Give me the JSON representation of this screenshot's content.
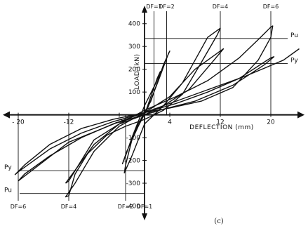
{
  "chart_data": {
    "type": "line",
    "panel_label": "(c)",
    "xlabel": "DEFLECTION (mm)",
    "ylabel": "LOAD (kN)",
    "xlim": [
      -22,
      25
    ],
    "ylim": [
      -420,
      430
    ],
    "x_ticks": [
      {
        "value": -20,
        "label": "- 20"
      },
      {
        "value": -12,
        "label": "-12"
      },
      {
        "value": -4,
        "label": "- 4"
      },
      {
        "value": 4,
        "label": "4"
      },
      {
        "value": 12,
        "label": "12"
      },
      {
        "value": 20,
        "label": "20"
      }
    ],
    "y_ticks": [
      {
        "value": 400,
        "label": "400"
      },
      {
        "value": 300,
        "label": "300"
      },
      {
        "value": 200,
        "label": "200"
      },
      {
        "value": 100,
        "label": "100"
      },
      {
        "value": -100,
        "label": "-100"
      },
      {
        "value": -200,
        "label": "- 200"
      },
      {
        "value": -300,
        "label": "-300"
      },
      {
        "value": -400,
        "label": "-400"
      }
    ],
    "reference_lines": [
      {
        "axis": "y",
        "value": 335,
        "label": "Pu",
        "label_side": "right"
      },
      {
        "axis": "y",
        "value": 225,
        "label": "Py",
        "label_side": "right"
      },
      {
        "axis": "y",
        "value": -245,
        "label": "Py",
        "label_side": "left"
      },
      {
        "axis": "y",
        "value": -345,
        "label": "Pu",
        "label_side": "left"
      }
    ],
    "ductility_markers": [
      {
        "x": 1.5,
        "label": "DF=1",
        "side": "top"
      },
      {
        "x": 3.5,
        "label": "DF=2",
        "side": "top"
      },
      {
        "x": 12,
        "label": "DF=4",
        "side": "top"
      },
      {
        "x": 20,
        "label": "DF=6",
        "side": "top"
      },
      {
        "x": -20,
        "label": "DF=6",
        "side": "bottom"
      },
      {
        "x": -12,
        "label": "DF=4",
        "side": "bottom"
      },
      {
        "x": -3,
        "label": "DF=2",
        "side": "bottom"
      },
      {
        "x": 0,
        "label": "DF=1",
        "side": "bottom"
      }
    ],
    "series": [
      {
        "values": [
          [
            0,
            0
          ],
          [
            1,
            80
          ],
          [
            2,
            160
          ],
          [
            2.5,
            190
          ],
          [
            1.8,
            140
          ],
          [
            0,
            40
          ],
          [
            -1,
            -30
          ],
          [
            -2,
            -100
          ],
          [
            -3,
            -180
          ],
          [
            -3.5,
            -215
          ],
          [
            -2.8,
            -160
          ],
          [
            -1,
            -50
          ],
          [
            0.5,
            30
          ],
          [
            2.2,
            150
          ],
          [
            3.8,
            270
          ],
          [
            4,
            280
          ],
          [
            3,
            220
          ],
          [
            1,
            60
          ],
          [
            -1,
            -40
          ],
          [
            -2,
            -110
          ],
          [
            -3,
            -220
          ],
          [
            -3.2,
            -255
          ],
          [
            -2,
            -180
          ],
          [
            0,
            -40
          ]
        ]
      },
      {
        "values": [
          [
            0,
            -40
          ],
          [
            3,
            40
          ],
          [
            6,
            140
          ],
          [
            8,
            240
          ],
          [
            10,
            340
          ],
          [
            12,
            380
          ],
          [
            11.5,
            350
          ],
          [
            9,
            230
          ],
          [
            6,
            90
          ],
          [
            3,
            20
          ],
          [
            0,
            -20
          ],
          [
            -3,
            -50
          ],
          [
            -6,
            -90
          ],
          [
            -9,
            -170
          ],
          [
            -11,
            -260
          ],
          [
            -12,
            -355
          ],
          [
            -12.5,
            -360
          ],
          [
            -11,
            -300
          ],
          [
            -8,
            -160
          ],
          [
            -4,
            -50
          ],
          [
            0,
            10
          ],
          [
            4,
            80
          ],
          [
            8,
            200
          ],
          [
            12,
            280
          ],
          [
            12.5,
            290
          ],
          [
            11,
            240
          ],
          [
            7,
            110
          ],
          [
            3,
            40
          ],
          [
            0,
            0
          ],
          [
            -4,
            -40
          ],
          [
            -8,
            -110
          ],
          [
            -12,
            -290
          ],
          [
            -12.5,
            -300
          ]
        ]
      },
      {
        "values": [
          [
            -12.5,
            -300
          ],
          [
            -8,
            -130
          ],
          [
            -4,
            -40
          ],
          [
            0,
            20
          ],
          [
            5,
            80
          ],
          [
            10,
            150
          ],
          [
            15,
            250
          ],
          [
            18,
            330
          ],
          [
            20,
            385
          ],
          [
            20.3,
            390
          ],
          [
            20,
            340
          ],
          [
            18,
            240
          ],
          [
            14,
            120
          ],
          [
            9,
            60
          ],
          [
            4,
            30
          ],
          [
            0,
            10
          ],
          [
            -5,
            -30
          ],
          [
            -10,
            -80
          ],
          [
            -15,
            -150
          ],
          [
            -18,
            -210
          ],
          [
            -20,
            -250
          ],
          [
            -20.5,
            -262
          ],
          [
            -19,
            -220
          ],
          [
            -15,
            -130
          ],
          [
            -10,
            -60
          ],
          [
            -5,
            -20
          ],
          [
            0,
            10
          ],
          [
            5,
            50
          ],
          [
            10,
            100
          ],
          [
            15,
            160
          ],
          [
            20,
            250
          ],
          [
            20.5,
            255
          ],
          [
            19,
            220
          ],
          [
            14,
            130
          ],
          [
            8,
            60
          ],
          [
            3,
            25
          ],
          [
            0,
            0
          ],
          [
            -5,
            -40
          ],
          [
            -10,
            -100
          ],
          [
            -15,
            -180
          ],
          [
            -19,
            -260
          ],
          [
            -20,
            -290
          ]
        ]
      },
      {
        "values": [
          [
            -20,
            -290
          ],
          [
            -12,
            -120
          ],
          [
            -4,
            -30
          ],
          [
            0,
            10
          ],
          [
            4,
            50
          ],
          [
            10,
            110
          ],
          [
            16,
            170
          ],
          [
            22,
            240
          ],
          [
            24.5,
            290
          ]
        ]
      }
    ]
  }
}
